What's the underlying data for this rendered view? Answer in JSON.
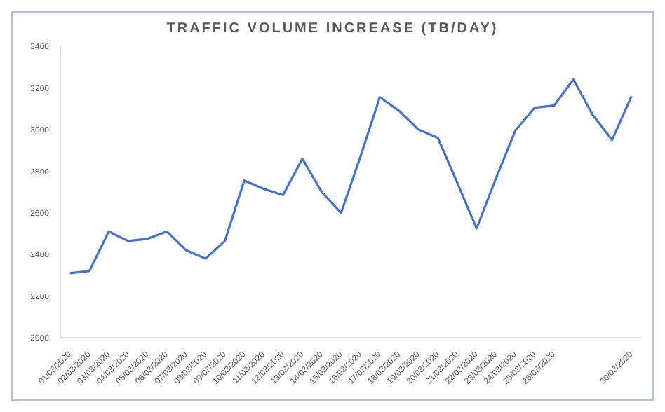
{
  "chart_data": {
    "type": "line",
    "title": "TRAFFIC VOLUME INCREASE (TB/DAY)",
    "categories": [
      "01/03/2020",
      "02/03/2020",
      "03/03/2020",
      "04/03/2020",
      "05/03/2020",
      "06/03/2020",
      "07/03/2020",
      "08/03/2020",
      "09/03/2020",
      "10/03/2020",
      "11/03/2020",
      "12/03/2020",
      "13/03/2020",
      "14/03/2020",
      "15/03/2020",
      "16/03/2020",
      "17/03/2020",
      "18/03/2020",
      "19/03/2020",
      "20/03/2020",
      "21/03/2020",
      "22/03/2020",
      "23/03/2020",
      "24/03/2020",
      "25/03/2020",
      "26/03/2020",
      null,
      null,
      null,
      "30/03/2020"
    ],
    "series": [
      {
        "color": "#4472c4",
        "values": [
          2310,
          2320,
          2510,
          2465,
          2475,
          2510,
          2420,
          2380,
          2465,
          2755,
          2715,
          2685,
          2860,
          2700,
          2600,
          2870,
          3155,
          3090,
          3000,
          2960,
          2745,
          2525,
          2765,
          2995,
          3105,
          3115,
          3240,
          3070,
          2950,
          3160
        ]
      }
    ],
    "ylim": [
      2000,
      3400
    ],
    "yticks": [
      2000,
      2200,
      2400,
      2600,
      2800,
      3000,
      3200,
      3400
    ],
    "grid": false,
    "legend": false,
    "marker": "none",
    "line_style": "solid"
  }
}
